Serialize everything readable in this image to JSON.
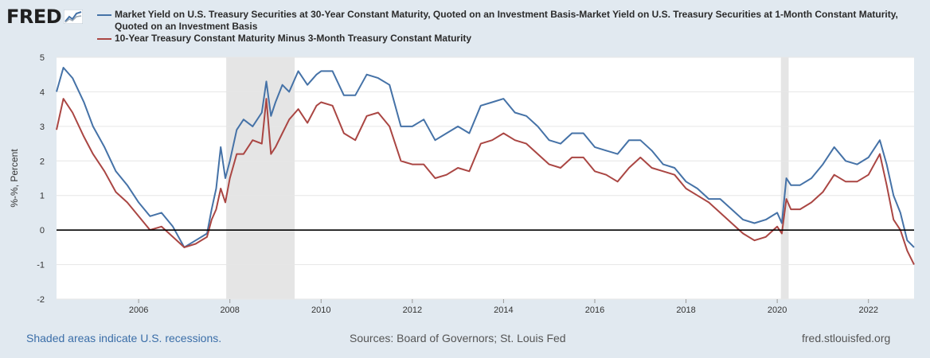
{
  "header": {
    "logo_text": "FRED"
  },
  "legend": [
    {
      "label": "Market Yield on U.S. Treasury Securities at 30-Year Constant Maturity, Quoted on an Investment Basis-Market Yield on U.S. Treasury Securities at 1-Month Constant Maturity, Quoted on an Investment Basis",
      "color": "#4572a7"
    },
    {
      "label": "10-Year Treasury Constant Maturity Minus 3-Month Treasury Constant Maturity",
      "color": "#aa4643"
    }
  ],
  "footer": {
    "left": "Shaded areas indicate U.S. recessions.",
    "center": "Sources: Board of Governors; St. Louis Fed",
    "right": "fred.stlouisfed.org"
  },
  "chart_data": {
    "type": "line",
    "ylabel": "%-%, Percent",
    "xlim": [
      2004.2,
      2023.0
    ],
    "ylim": [
      -2,
      5
    ],
    "yticks": [
      -2,
      -1,
      0,
      1,
      2,
      3,
      4,
      5
    ],
    "xticks": [
      2006,
      2008,
      2010,
      2012,
      2014,
      2016,
      2018,
      2020,
      2022
    ],
    "recessions": [
      [
        2007.92,
        2009.42
      ],
      [
        2020.08,
        2020.25
      ]
    ],
    "grid": true,
    "zero_line": true,
    "series": [
      {
        "name": "Market Yield on U.S. Treasury Securities at 30-Year Constant Maturity, Quoted on an Investment Basis-Market Yield on U.S. Treasury Securities at 1-Month Constant Maturity, Quoted on an Investment Basis",
        "color": "#4572a7",
        "x": [
          2004.2,
          2004.35,
          2004.55,
          2004.8,
          2005.0,
          2005.25,
          2005.5,
          2005.75,
          2006.0,
          2006.25,
          2006.5,
          2006.75,
          2007.0,
          2007.25,
          2007.5,
          2007.6,
          2007.7,
          2007.8,
          2007.9,
          2008.0,
          2008.15,
          2008.3,
          2008.5,
          2008.7,
          2008.8,
          2008.9,
          2009.0,
          2009.15,
          2009.3,
          2009.5,
          2009.7,
          2009.9,
          2010.0,
          2010.25,
          2010.5,
          2010.75,
          2011.0,
          2011.25,
          2011.5,
          2011.75,
          2012.0,
          2012.25,
          2012.5,
          2012.75,
          2013.0,
          2013.25,
          2013.5,
          2013.75,
          2014.0,
          2014.25,
          2014.5,
          2014.75,
          2015.0,
          2015.25,
          2015.5,
          2015.75,
          2016.0,
          2016.25,
          2016.5,
          2016.75,
          2017.0,
          2017.25,
          2017.5,
          2017.75,
          2018.0,
          2018.25,
          2018.5,
          2018.75,
          2019.0,
          2019.25,
          2019.5,
          2019.75,
          2020.0,
          2020.1,
          2020.2,
          2020.3,
          2020.5,
          2020.75,
          2021.0,
          2021.25,
          2021.5,
          2021.75,
          2022.0,
          2022.25,
          2022.4,
          2022.55,
          2022.7,
          2022.85,
          2023.0
        ],
        "values": [
          4.0,
          4.7,
          4.4,
          3.7,
          3.0,
          2.4,
          1.7,
          1.3,
          0.8,
          0.4,
          0.5,
          0.1,
          -0.5,
          -0.3,
          -0.1,
          0.6,
          1.2,
          2.4,
          1.5,
          2.0,
          2.9,
          3.2,
          3.0,
          3.4,
          4.3,
          3.3,
          3.7,
          4.2,
          4.0,
          4.6,
          4.2,
          4.5,
          4.6,
          4.6,
          3.9,
          3.9,
          4.5,
          4.4,
          4.2,
          3.0,
          3.0,
          3.2,
          2.6,
          2.8,
          3.0,
          2.8,
          3.6,
          3.7,
          3.8,
          3.4,
          3.3,
          3.0,
          2.6,
          2.5,
          2.8,
          2.8,
          2.4,
          2.3,
          2.2,
          2.6,
          2.6,
          2.3,
          1.9,
          1.8,
          1.4,
          1.2,
          0.9,
          0.9,
          0.6,
          0.3,
          0.2,
          0.3,
          0.5,
          0.2,
          1.5,
          1.3,
          1.3,
          1.5,
          1.9,
          2.4,
          2.0,
          1.9,
          2.1,
          2.6,
          1.9,
          1.0,
          0.5,
          -0.3,
          -0.5
        ]
      },
      {
        "name": "10-Year Treasury Constant Maturity Minus 3-Month Treasury Constant Maturity",
        "color": "#aa4643",
        "x": [
          2004.2,
          2004.35,
          2004.55,
          2004.8,
          2005.0,
          2005.25,
          2005.5,
          2005.75,
          2006.0,
          2006.25,
          2006.5,
          2006.75,
          2007.0,
          2007.25,
          2007.5,
          2007.6,
          2007.7,
          2007.8,
          2007.9,
          2008.0,
          2008.15,
          2008.3,
          2008.5,
          2008.7,
          2008.8,
          2008.9,
          2009.0,
          2009.15,
          2009.3,
          2009.5,
          2009.7,
          2009.9,
          2010.0,
          2010.25,
          2010.5,
          2010.75,
          2011.0,
          2011.25,
          2011.5,
          2011.75,
          2012.0,
          2012.25,
          2012.5,
          2012.75,
          2013.0,
          2013.25,
          2013.5,
          2013.75,
          2014.0,
          2014.25,
          2014.5,
          2014.75,
          2015.0,
          2015.25,
          2015.5,
          2015.75,
          2016.0,
          2016.25,
          2016.5,
          2016.75,
          2017.0,
          2017.25,
          2017.5,
          2017.75,
          2018.0,
          2018.25,
          2018.5,
          2018.75,
          2019.0,
          2019.25,
          2019.5,
          2019.75,
          2020.0,
          2020.1,
          2020.2,
          2020.3,
          2020.5,
          2020.75,
          2021.0,
          2021.25,
          2021.5,
          2021.75,
          2022.0,
          2022.25,
          2022.4,
          2022.55,
          2022.7,
          2022.85,
          2023.0
        ],
        "values": [
          2.9,
          3.8,
          3.4,
          2.7,
          2.2,
          1.7,
          1.1,
          0.8,
          0.4,
          0.0,
          0.1,
          -0.2,
          -0.5,
          -0.4,
          -0.2,
          0.3,
          0.6,
          1.2,
          0.8,
          1.5,
          2.2,
          2.2,
          2.6,
          2.5,
          3.8,
          2.2,
          2.4,
          2.8,
          3.2,
          3.5,
          3.1,
          3.6,
          3.7,
          3.6,
          2.8,
          2.6,
          3.3,
          3.4,
          3.0,
          2.0,
          1.9,
          1.9,
          1.5,
          1.6,
          1.8,
          1.7,
          2.5,
          2.6,
          2.8,
          2.6,
          2.5,
          2.2,
          1.9,
          1.8,
          2.1,
          2.1,
          1.7,
          1.6,
          1.4,
          1.8,
          2.1,
          1.8,
          1.7,
          1.6,
          1.2,
          1.0,
          0.8,
          0.5,
          0.2,
          -0.1,
          -0.3,
          -0.2,
          0.1,
          -0.1,
          0.9,
          0.6,
          0.6,
          0.8,
          1.1,
          1.6,
          1.4,
          1.4,
          1.6,
          2.2,
          1.3,
          0.3,
          0.0,
          -0.6,
          -1.0
        ]
      }
    ]
  }
}
